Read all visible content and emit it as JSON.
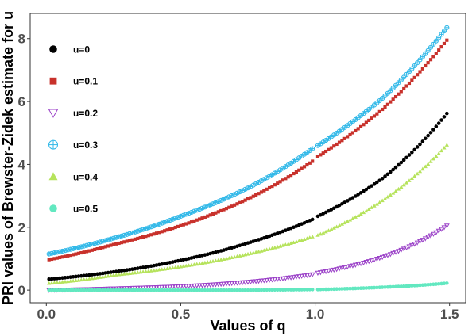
{
  "chart_data": {
    "type": "scatter",
    "xlabel": "Values of q",
    "ylabel": "PRI values of Brewster-Zidek estimate for u",
    "xlim": [
      -0.06,
      1.56
    ],
    "ylim": [
      -0.4,
      8.8
    ],
    "xticks": [
      0.0,
      0.5,
      1.0,
      1.5
    ],
    "xtick_labels": [
      "0.0",
      "0.5",
      "1.0",
      "1.5"
    ],
    "yticks": [
      0,
      2,
      4,
      6,
      8
    ],
    "ytick_labels": [
      "0",
      "2",
      "4",
      "6",
      "8"
    ],
    "grid": false,
    "legend_position": "top-left inside",
    "x_range": [
      0.01,
      1.49
    ],
    "x_step": 0.01,
    "gap_at_x": 1.0,
    "series": [
      {
        "name": "u=0",
        "marker": "circle",
        "color": "#000000",
        "points": [
          [
            0.01,
            0.35
          ],
          [
            0.25,
            0.58
          ],
          [
            0.5,
            0.95
          ],
          [
            0.75,
            1.5
          ],
          [
            0.99,
            2.25
          ],
          [
            1.01,
            2.35
          ],
          [
            1.25,
            3.55
          ],
          [
            1.49,
            5.62
          ]
        ]
      },
      {
        "name": "u=0.1",
        "marker": "square",
        "color": "#c8312b",
        "points": [
          [
            0.01,
            0.97
          ],
          [
            0.25,
            1.45
          ],
          [
            0.5,
            2.05
          ],
          [
            0.75,
            2.9
          ],
          [
            0.99,
            4.1
          ],
          [
            1.01,
            4.25
          ],
          [
            1.25,
            5.75
          ],
          [
            1.49,
            7.95
          ]
        ]
      },
      {
        "name": "u=0.2",
        "marker": "triangle-down-open",
        "color": "#9b42c8",
        "points": [
          [
            0.01,
            0.0
          ],
          [
            0.25,
            0.05
          ],
          [
            0.5,
            0.12
          ],
          [
            0.75,
            0.26
          ],
          [
            0.99,
            0.5
          ],
          [
            1.01,
            0.55
          ],
          [
            1.25,
            1.05
          ],
          [
            1.49,
            2.05
          ]
        ]
      },
      {
        "name": "u=0.3",
        "marker": "circle-plus",
        "color": "#30b8e8",
        "points": [
          [
            0.01,
            1.15
          ],
          [
            0.25,
            1.65
          ],
          [
            0.5,
            2.35
          ],
          [
            0.75,
            3.25
          ],
          [
            0.99,
            4.5
          ],
          [
            1.01,
            4.6
          ],
          [
            1.25,
            6.1
          ],
          [
            1.49,
            8.35
          ]
        ]
      },
      {
        "name": "u=0.4",
        "marker": "triangle-up",
        "color": "#b6e35c",
        "points": [
          [
            0.01,
            0.22
          ],
          [
            0.25,
            0.48
          ],
          [
            0.5,
            0.75
          ],
          [
            0.75,
            1.15
          ],
          [
            0.99,
            1.7
          ],
          [
            1.01,
            1.75
          ],
          [
            1.25,
            2.85
          ],
          [
            1.49,
            4.62
          ]
        ]
      },
      {
        "name": "u=0.5",
        "marker": "circle",
        "color": "#62e8c0",
        "points": [
          [
            0.01,
            0.0
          ],
          [
            0.25,
            0.0
          ],
          [
            0.5,
            0.0
          ],
          [
            0.75,
            0.0
          ],
          [
            0.99,
            0.02
          ],
          [
            1.01,
            0.02
          ],
          [
            1.25,
            0.09
          ],
          [
            1.49,
            0.22
          ]
        ]
      }
    ]
  }
}
